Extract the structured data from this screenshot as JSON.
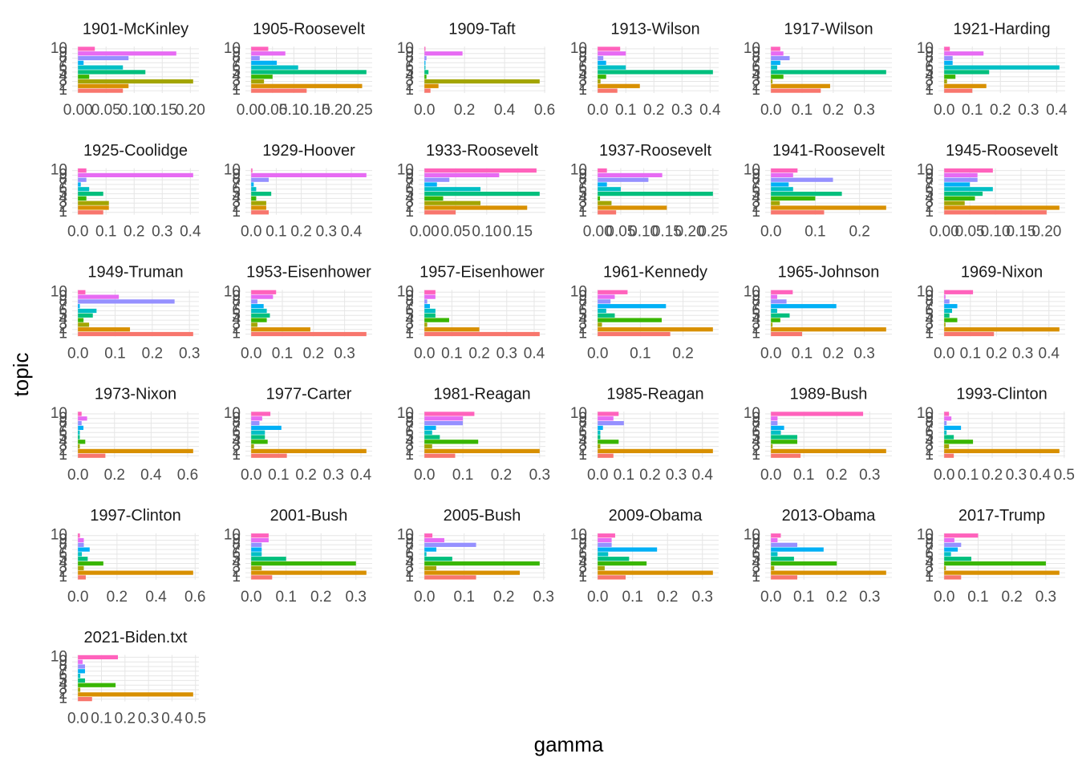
{
  "chart_data": {
    "type": "bar",
    "orientation": "horizontal",
    "x_label": "gamma",
    "y_label": "topic",
    "grid": true,
    "categories": [
      1,
      2,
      3,
      4,
      5,
      6,
      7,
      8,
      9,
      10
    ],
    "colors": [
      "#F8766D",
      "#D89000",
      "#A3A500",
      "#39B600",
      "#00BF7D",
      "#00BFC4",
      "#00B0F6",
      "#9590FF",
      "#E76BF3",
      "#FF62BC"
    ],
    "facets": [
      {
        "title": "1901-McKinley",
        "values": [
          0.08,
          0.09,
          0.205,
          0.02,
          0.12,
          0.08,
          0.01,
          0.09,
          0.175,
          0.03
        ],
        "xlim": [
          -0.0103,
          0.2153
        ],
        "xticks": [
          {
            "value": 0,
            "label": "0.00"
          },
          0.05,
          {
            "value": 0.1,
            "label": "0.10"
          },
          0.15,
          {
            "value": 0.2,
            "label": "0.20"
          }
        ]
      },
      {
        "title": "1905-Roosevelt",
        "values": [
          0.13,
          0.26,
          0.03,
          0.05,
          0.27,
          0.11,
          0.06,
          0.02,
          0.08,
          0.04
        ],
        "xlim": [
          -0.0135,
          0.2835
        ],
        "xticks": [
          {
            "value": 0,
            "label": "0.00"
          },
          0.05,
          {
            "value": 0.1,
            "label": "0.10"
          },
          0.15,
          {
            "value": 0.2,
            "label": "0.20"
          },
          0.25
        ]
      },
      {
        "title": "1909-Taft",
        "values": [
          0.03,
          0.07,
          0.575,
          0.01,
          0.02,
          0.005,
          0.005,
          0.01,
          0.19,
          0.005
        ],
        "xlim": [
          -0.0288,
          0.6038
        ],
        "xticks": [
          {
            "value": 0,
            "label": "0.0"
          },
          0.2,
          0.4,
          0.6
        ]
      },
      {
        "title": "1913-Wilson",
        "values": [
          0.07,
          0.15,
          0.01,
          0.03,
          0.41,
          0.1,
          0.03,
          0.02,
          0.1,
          0.08
        ],
        "xlim": [
          -0.0205,
          0.4305
        ],
        "xticks": [
          {
            "value": 0,
            "label": "0.0"
          },
          0.1,
          0.2,
          0.3,
          0.4
        ]
      },
      {
        "title": "1917-Wilson",
        "values": [
          0.16,
          0.19,
          0.005,
          0.04,
          0.37,
          0.02,
          0.03,
          0.06,
          0.04,
          0.03
        ],
        "xlim": [
          -0.0185,
          0.3885
        ],
        "xticks": [
          {
            "value": 0,
            "label": "0.0"
          },
          0.1,
          0.2,
          0.3
        ]
      },
      {
        "title": "1921-Harding",
        "values": [
          0.1,
          0.15,
          0.01,
          0.04,
          0.16,
          0.41,
          0.03,
          0.03,
          0.14,
          0.02
        ],
        "xlim": [
          -0.0205,
          0.4305
        ],
        "xticks": [
          {
            "value": 0,
            "label": "0.0"
          },
          0.1,
          0.2,
          0.3,
          0.4
        ]
      },
      {
        "title": "1925-Coolidge",
        "values": [
          0.09,
          0.11,
          0.11,
          0.03,
          0.09,
          0.04,
          0.01,
          0.03,
          0.41,
          0.03
        ],
        "xlim": [
          -0.0205,
          0.4305
        ],
        "xticks": [
          {
            "value": 0,
            "label": "0.0"
          },
          0.1,
          0.2,
          0.3,
          0.4
        ]
      },
      {
        "title": "1929-Hoover",
        "values": [
          0.07,
          0.06,
          0.06,
          0.02,
          0.08,
          0.02,
          0.01,
          0.07,
          0.46,
          0.005
        ],
        "xlim": [
          -0.023,
          0.483
        ],
        "xticks": [
          {
            "value": 0,
            "label": "0.0"
          },
          0.1,
          0.2,
          0.3,
          0.4
        ]
      },
      {
        "title": "1933-Roosevelt",
        "values": [
          0.05,
          0.165,
          0.09,
          0.03,
          0.185,
          0.09,
          0.02,
          0.04,
          0.12,
          0.18
        ],
        "xlim": [
          -0.0093,
          0.1943
        ],
        "xticks": [
          {
            "value": 0,
            "label": "0.00"
          },
          0.05,
          {
            "value": 0.1,
            "label": "0.10"
          },
          0.15
        ]
      },
      {
        "title": "1937-Roosevelt",
        "values": [
          0.04,
          0.15,
          0.03,
          0.005,
          0.25,
          0.05,
          0.02,
          0.11,
          0.14,
          0.02
        ],
        "xlim": [
          -0.0125,
          0.2625
        ],
        "xticks": [
          {
            "value": 0,
            "label": "0.00"
          },
          0.05,
          {
            "value": 0.1,
            "label": "0.10"
          },
          0.15,
          {
            "value": 0.2,
            "label": "0.20"
          },
          0.25
        ]
      },
      {
        "title": "1941-Roosevelt",
        "values": [
          0.12,
          0.26,
          0.02,
          0.1,
          0.16,
          0.05,
          0.04,
          0.14,
          0.05,
          0.06
        ],
        "xlim": [
          -0.013,
          0.273
        ],
        "xticks": [
          {
            "value": 0,
            "label": "0.0"
          },
          0.1,
          0.2
        ]
      },
      {
        "title": "1945-Roosevelt",
        "values": [
          0.2,
          0.225,
          0.04,
          0.06,
          0.075,
          0.095,
          0.05,
          0.065,
          0.065,
          0.095
        ],
        "xlim": [
          -0.0113,
          0.2363
        ],
        "xticks": [
          {
            "value": 0,
            "label": "0.00"
          },
          0.05,
          {
            "value": 0.1,
            "label": "0.10"
          },
          0.15,
          {
            "value": 0.2,
            "label": "0.20"
          }
        ]
      },
      {
        "title": "1949-Truman",
        "values": [
          0.31,
          0.14,
          0.03,
          0.015,
          0.04,
          0.05,
          0.005,
          0.26,
          0.11,
          0.02
        ],
        "xlim": [
          -0.0155,
          0.3255
        ],
        "xticks": [
          {
            "value": 0,
            "label": "0.0"
          },
          0.1,
          0.2,
          0.3
        ]
      },
      {
        "title": "1953-Eisenhower",
        "values": [
          0.37,
          0.19,
          0.02,
          0.05,
          0.06,
          0.05,
          0.04,
          0.02,
          0.07,
          0.08
        ],
        "xlim": [
          -0.0185,
          0.3885
        ],
        "xticks": [
          {
            "value": 0,
            "label": "0.0"
          },
          0.1,
          0.2,
          0.3
        ]
      },
      {
        "title": "1957-Eisenhower",
        "values": [
          0.42,
          0.2,
          0.01,
          0.09,
          0.04,
          0.04,
          0.02,
          0.01,
          0.04,
          0.04
        ],
        "xlim": [
          -0.021,
          0.441
        ],
        "xticks": [
          {
            "value": 0,
            "label": "0.0"
          },
          0.1,
          0.2,
          0.3,
          0.4
        ]
      },
      {
        "title": "1961-Kennedy",
        "values": [
          0.17,
          0.27,
          0.01,
          0.15,
          0.04,
          0.02,
          0.16,
          0.03,
          0.04,
          0.07
        ],
        "xlim": [
          -0.0135,
          0.2835
        ],
        "xticks": [
          {
            "value": 0,
            "label": "0.0"
          },
          0.1,
          0.2
        ]
      },
      {
        "title": "1965-Johnson",
        "values": [
          0.1,
          0.37,
          0.005,
          0.03,
          0.06,
          0.02,
          0.21,
          0.05,
          0.02,
          0.07
        ],
        "xlim": [
          -0.0185,
          0.3885
        ],
        "xticks": [
          {
            "value": 0,
            "label": "0.0"
          },
          0.1,
          0.2,
          0.3
        ]
      },
      {
        "title": "1969-Nixon",
        "values": [
          0.19,
          0.44,
          0.005,
          0.05,
          0.02,
          0.03,
          0.05,
          0.02,
          0.005,
          0.11
        ],
        "xlim": [
          -0.022,
          0.462
        ],
        "xticks": [
          {
            "value": 0,
            "label": "0.0"
          },
          0.1,
          0.2,
          0.3,
          0.4
        ]
      },
      {
        "title": "1973-Nixon",
        "values": [
          0.15,
          0.63,
          0.01,
          0.04,
          0.01,
          0.01,
          0.03,
          0.02,
          0.05,
          0.02
        ],
        "xlim": [
          -0.0315,
          0.6615
        ],
        "xticks": [
          {
            "value": 0,
            "label": "0.0"
          },
          0.2,
          0.4,
          0.6
        ]
      },
      {
        "title": "1977-Carter",
        "values": [
          0.13,
          0.42,
          0.01,
          0.06,
          0.05,
          0.05,
          0.11,
          0.03,
          0.04,
          0.07
        ],
        "xlim": [
          -0.021,
          0.441
        ],
        "xticks": [
          {
            "value": 0,
            "label": "0.0"
          },
          0.1,
          0.2,
          0.3,
          0.4
        ]
      },
      {
        "title": "1981-Reagan",
        "values": [
          0.08,
          0.3,
          0.02,
          0.14,
          0.04,
          0.02,
          0.03,
          0.1,
          0.1,
          0.13
        ],
        "xlim": [
          -0.015,
          0.315
        ],
        "xticks": [
          {
            "value": 0,
            "label": "0.0"
          },
          0.1,
          0.2,
          0.3
        ]
      },
      {
        "title": "1985-Reagan",
        "values": [
          0.06,
          0.44,
          0.01,
          0.08,
          0.01,
          0.01,
          0.02,
          0.1,
          0.06,
          0.08
        ],
        "xlim": [
          -0.022,
          0.462
        ],
        "xticks": [
          {
            "value": 0,
            "label": "0.0"
          },
          0.1,
          0.2,
          0.3,
          0.4
        ]
      },
      {
        "title": "1989-Bush",
        "values": [
          0.09,
          0.35,
          0.005,
          0.08,
          0.08,
          0.03,
          0.04,
          0.02,
          0.02,
          0.28
        ],
        "xlim": [
          -0.0175,
          0.3675
        ],
        "xticks": [
          {
            "value": 0,
            "label": "0.0"
          },
          0.1,
          0.2,
          0.3
        ]
      },
      {
        "title": "1993-Clinton",
        "values": [
          0.04,
          0.48,
          0.02,
          0.12,
          0.04,
          0.01,
          0.07,
          0.01,
          0.03,
          0.02
        ],
        "xlim": [
          -0.024,
          0.504
        ],
        "xticks": [
          {
            "value": 0,
            "label": "0.0"
          },
          0.1,
          0.2,
          0.3,
          0.4,
          0.5
        ]
      },
      {
        "title": "1997-Clinton",
        "values": [
          0.04,
          0.59,
          0.03,
          0.13,
          0.05,
          0.02,
          0.06,
          0.03,
          0.03,
          0.01
        ],
        "xlim": [
          -0.0295,
          0.6195
        ],
        "xticks": [
          {
            "value": 0,
            "label": "0.0"
          },
          0.2,
          0.4,
          0.6
        ]
      },
      {
        "title": "2001-Bush",
        "values": [
          0.06,
          0.33,
          0.03,
          0.3,
          0.1,
          0.03,
          0.03,
          0.03,
          0.05,
          0.05
        ],
        "xlim": [
          -0.0165,
          0.3465
        ],
        "xticks": [
          {
            "value": 0,
            "label": "0.0"
          },
          0.1,
          0.2,
          0.3
        ]
      },
      {
        "title": "2005-Bush",
        "values": [
          0.13,
          0.24,
          0.03,
          0.29,
          0.07,
          0.005,
          0.03,
          0.13,
          0.05,
          0.02
        ],
        "xlim": [
          -0.0145,
          0.3045
        ],
        "xticks": [
          {
            "value": 0,
            "label": "0.0"
          },
          0.1,
          0.2,
          0.3
        ]
      },
      {
        "title": "2009-Obama",
        "values": [
          0.08,
          0.33,
          0.02,
          0.14,
          0.09,
          0.03,
          0.17,
          0.04,
          0.04,
          0.05
        ],
        "xlim": [
          -0.0165,
          0.3465
        ],
        "xticks": [
          {
            "value": 0,
            "label": "0.0"
          },
          0.1,
          0.2,
          0.3
        ]
      },
      {
        "title": "2013-Obama",
        "values": [
          0.08,
          0.35,
          0.01,
          0.2,
          0.07,
          0.02,
          0.16,
          0.08,
          0.02,
          0.03
        ],
        "xlim": [
          -0.0175,
          0.3675
        ],
        "xticks": [
          {
            "value": 0,
            "label": "0.0"
          },
          0.1,
          0.2,
          0.3
        ]
      },
      {
        "title": "2017-Trump",
        "values": [
          0.05,
          0.34,
          0.005,
          0.3,
          0.08,
          0.02,
          0.04,
          0.05,
          0.03,
          0.1
        ],
        "xlim": [
          -0.017,
          0.357
        ],
        "xticks": [
          {
            "value": 0,
            "label": "0.0"
          },
          0.1,
          0.2,
          0.3
        ]
      },
      {
        "title": "2021-Biden.txt",
        "values": [
          0.06,
          0.49,
          0.01,
          0.16,
          0.03,
          0.01,
          0.03,
          0.03,
          0.02,
          0.17
        ],
        "xlim": [
          -0.0245,
          0.5145
        ],
        "xticks": [
          {
            "value": 0,
            "label": "0.0"
          },
          0.1,
          0.2,
          0.3,
          0.4,
          0.5
        ]
      }
    ]
  }
}
